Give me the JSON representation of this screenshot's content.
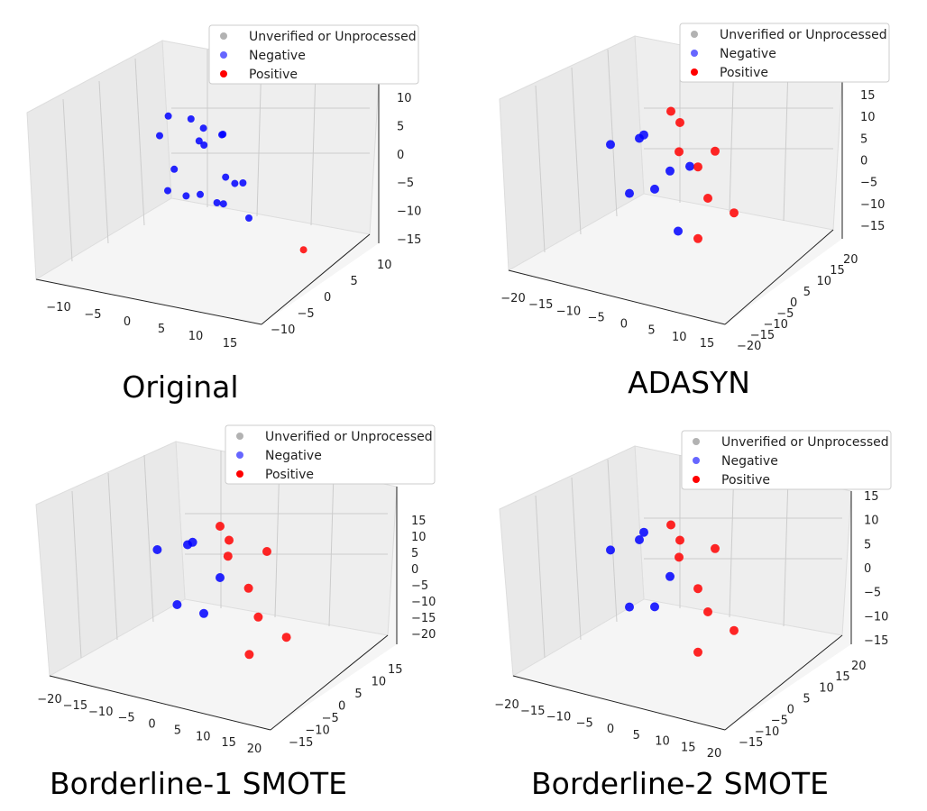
{
  "legend": {
    "entries": [
      "Unverified or Unprocessed",
      "Negative",
      "Positive"
    ],
    "colors": [
      "#7f7f7f",
      "#0000ff",
      "#ff0000"
    ]
  },
  "chart_data": [
    {
      "type": "scatter",
      "title": "Original",
      "x_ticks": [
        "−10",
        "−5",
        "0",
        "5",
        "10",
        "15"
      ],
      "y_ticks": [
        "10",
        "5",
        "0",
        "−5",
        "−10"
      ],
      "z_ticks": [
        "10",
        "5",
        "0",
        "−5",
        "−10",
        "−15"
      ],
      "series": [
        {
          "name": "Unverified or Unprocessed",
          "color": "#7f7f7f",
          "points": []
        },
        {
          "name": "Negative",
          "color": "#0000ff",
          "points": [
            [
              -5,
              2,
              8
            ],
            [
              -2,
              -3,
              10
            ],
            [
              0,
              1,
              5
            ],
            [
              3,
              4,
              3
            ],
            [
              -6,
              -1,
              -2
            ],
            [
              1,
              -4,
              -5
            ],
            [
              4,
              2,
              -8
            ],
            [
              -3,
              5,
              -10
            ],
            [
              6,
              -2,
              0
            ],
            [
              2,
              6,
              7
            ],
            [
              -8,
              0,
              4
            ],
            [
              8,
              3,
              -3
            ],
            [
              5,
              -5,
              -6
            ],
            [
              -1,
              3,
              -9
            ],
            [
              0,
              -6,
              2
            ],
            [
              7,
              5,
              6
            ],
            [
              -4,
              -5,
              -4
            ],
            [
              3,
              -1,
              9
            ]
          ]
        },
        {
          "name": "Positive",
          "color": "#ff0000",
          "points": [
            [
              13,
              -8,
              -8
            ]
          ]
        }
      ]
    },
    {
      "type": "scatter",
      "title": "ADASYN",
      "x_ticks": [
        "−20",
        "−15",
        "−10",
        "−5",
        "0",
        "5",
        "10",
        "15"
      ],
      "y_ticks": [
        "20",
        "15",
        "10",
        "5",
        "0",
        "−5",
        "−10",
        "−15",
        "−20"
      ],
      "z_ticks": [
        "15",
        "10",
        "5",
        "0",
        "−5",
        "−10",
        "−15"
      ],
      "series": [
        {
          "name": "Unverified or Unprocessed",
          "color": "#7f7f7f",
          "points": []
        },
        {
          "name": "Negative",
          "color": "#0000ff",
          "points": [
            [
              -12,
              -5,
              8
            ],
            [
              -10,
              0,
              5
            ],
            [
              -8,
              -8,
              2
            ],
            [
              -14,
              4,
              0
            ],
            [
              -6,
              -12,
              6
            ],
            [
              -9,
              -4,
              -5
            ],
            [
              -11,
              2,
              -10
            ],
            [
              -5,
              -6,
              -13
            ]
          ]
        },
        {
          "name": "Positive",
          "color": "#ff0000",
          "points": [
            [
              0,
              5,
              12
            ],
            [
              5,
              10,
              8
            ],
            [
              8,
              -5,
              -5
            ],
            [
              -3,
              -10,
              -12
            ],
            [
              3,
              0,
              2
            ],
            [
              10,
              8,
              -8
            ],
            [
              2,
              -8,
              10
            ],
            [
              6,
              12,
              0
            ]
          ]
        }
      ]
    },
    {
      "type": "scatter",
      "title": "Borderline-1 SMOTE",
      "x_ticks": [
        "−20",
        "−15",
        "−10",
        "−5",
        "0",
        "5",
        "10",
        "15",
        "20"
      ],
      "y_ticks": [
        "15",
        "10",
        "5",
        "0",
        "−5",
        "−10",
        "−15"
      ],
      "z_ticks": [
        "15",
        "10",
        "5",
        "0",
        "−5",
        "−10",
        "−15",
        "−20"
      ],
      "series": [
        {
          "name": "Unverified or Unprocessed",
          "color": "#7f7f7f",
          "points": []
        },
        {
          "name": "Negative",
          "color": "#0000ff",
          "points": [
            [
              -12,
              -5,
              8
            ],
            [
              -10,
              0,
              5
            ],
            [
              -8,
              -8,
              2
            ],
            [
              -14,
              4,
              0
            ],
            [
              -9,
              -4,
              -10
            ],
            [
              -11,
              2,
              -12
            ]
          ]
        },
        {
          "name": "Positive",
          "color": "#ff0000",
          "points": [
            [
              0,
              5,
              10
            ],
            [
              5,
              10,
              5
            ],
            [
              8,
              -5,
              -10
            ],
            [
              -3,
              -10,
              -15
            ],
            [
              3,
              0,
              -2
            ],
            [
              10,
              8,
              -12
            ],
            [
              2,
              -8,
              12
            ],
            [
              6,
              12,
              0
            ]
          ]
        }
      ]
    },
    {
      "type": "scatter",
      "title": "Borderline-2 SMOTE",
      "x_ticks": [
        "−20",
        "−15",
        "−10",
        "−5",
        "0",
        "5",
        "10",
        "15",
        "20"
      ],
      "y_ticks": [
        "20",
        "15",
        "10",
        "5",
        "0",
        "−5",
        "−10",
        "−15"
      ],
      "z_ticks": [
        "15",
        "10",
        "5",
        "0",
        "−5",
        "−10",
        "−15"
      ],
      "series": [
        {
          "name": "Unverified or Unprocessed",
          "color": "#7f7f7f",
          "points": []
        },
        {
          "name": "Negative",
          "color": "#0000ff",
          "points": [
            [
              -12,
              -5,
              10
            ],
            [
              -10,
              0,
              6
            ],
            [
              -8,
              -8,
              2
            ],
            [
              -14,
              4,
              0
            ],
            [
              -9,
              -4,
              -8
            ],
            [
              -11,
              2,
              -12
            ]
          ]
        },
        {
          "name": "Positive",
          "color": "#ff0000",
          "points": [
            [
              0,
              5,
              10
            ],
            [
              5,
              10,
              5
            ],
            [
              8,
              -5,
              -8
            ],
            [
              -3,
              -10,
              -14
            ],
            [
              3,
              0,
              -2
            ],
            [
              10,
              8,
              -10
            ],
            [
              2,
              -8,
              12
            ],
            [
              6,
              12,
              0
            ]
          ]
        }
      ]
    }
  ]
}
